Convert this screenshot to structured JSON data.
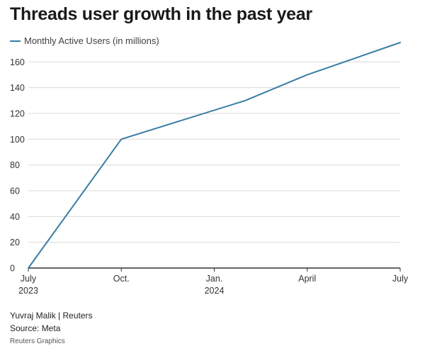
{
  "chart_data": {
    "type": "line",
    "title": "Threads user growth in the past year",
    "legend": "Monthly Active Users (in millions)",
    "legend_placement": "top-left",
    "x_ticks": [
      {
        "line1": "July",
        "line2": "2023"
      },
      {
        "line1": "Oct.",
        "line2": ""
      },
      {
        "line1": "Jan.",
        "line2": "2024"
      },
      {
        "line1": "April",
        "line2": ""
      },
      {
        "line1": "July",
        "line2": ""
      }
    ],
    "y_ticks": [
      0,
      20,
      40,
      60,
      80,
      100,
      120,
      140,
      160
    ],
    "ylim": [
      0,
      175
    ],
    "grid": true,
    "series": [
      {
        "name": "Monthly Active Users (in millions)",
        "points": [
          {
            "x": 0,
            "y": 0
          },
          {
            "x": 3,
            "y": 100
          },
          {
            "x": 7,
            "y": 130
          },
          {
            "x": 9,
            "y": 150
          },
          {
            "x": 12,
            "y": 175
          }
        ]
      }
    ],
    "line_color": "#3a7ca5"
  },
  "footer": {
    "byline": "Yuvraj Malik | Reuters",
    "source": "Source: Meta",
    "credit": "Reuters Graphics"
  }
}
